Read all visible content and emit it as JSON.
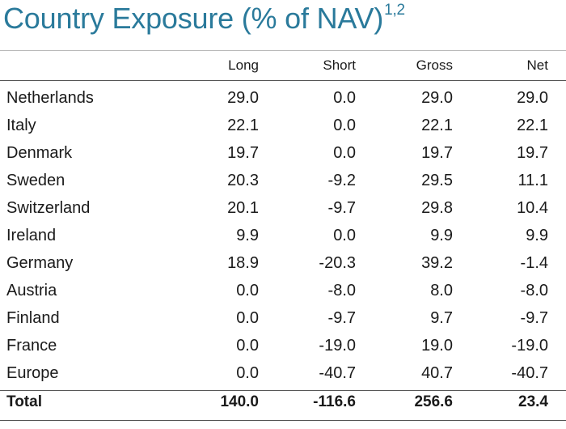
{
  "title": "Country Exposure (% of NAV)",
  "title_superscript": "1,2",
  "chart_data": {
    "type": "table",
    "columns": [
      "Long",
      "Short",
      "Gross",
      "Net"
    ],
    "rows": [
      {
        "country": "Netherlands",
        "values": [
          "29.0",
          "0.0",
          "29.0",
          "29.0"
        ]
      },
      {
        "country": "Italy",
        "values": [
          "22.1",
          "0.0",
          "22.1",
          "22.1"
        ]
      },
      {
        "country": "Denmark",
        "values": [
          "19.7",
          "0.0",
          "19.7",
          "19.7"
        ]
      },
      {
        "country": "Sweden",
        "values": [
          "20.3",
          "-9.2",
          "29.5",
          "11.1"
        ]
      },
      {
        "country": "Switzerland",
        "values": [
          "20.1",
          "-9.7",
          "29.8",
          "10.4"
        ]
      },
      {
        "country": "Ireland",
        "values": [
          "9.9",
          "0.0",
          "9.9",
          "9.9"
        ]
      },
      {
        "country": "Germany",
        "values": [
          "18.9",
          "-20.3",
          "39.2",
          "-1.4"
        ]
      },
      {
        "country": "Austria",
        "values": [
          "0.0",
          "-8.0",
          "8.0",
          "-8.0"
        ]
      },
      {
        "country": "Finland",
        "values": [
          "0.0",
          "-9.7",
          "9.7",
          "-9.7"
        ]
      },
      {
        "country": "France",
        "values": [
          "0.0",
          "-19.0",
          "19.0",
          "-19.0"
        ]
      },
      {
        "country": "Europe",
        "values": [
          "0.0",
          "-40.7",
          "40.7",
          "-40.7"
        ]
      }
    ],
    "total": {
      "label": "Total",
      "values": [
        "140.0",
        "-116.6",
        "256.6",
        "23.4"
      ]
    }
  },
  "colors": {
    "title": "#2a7a9b"
  }
}
